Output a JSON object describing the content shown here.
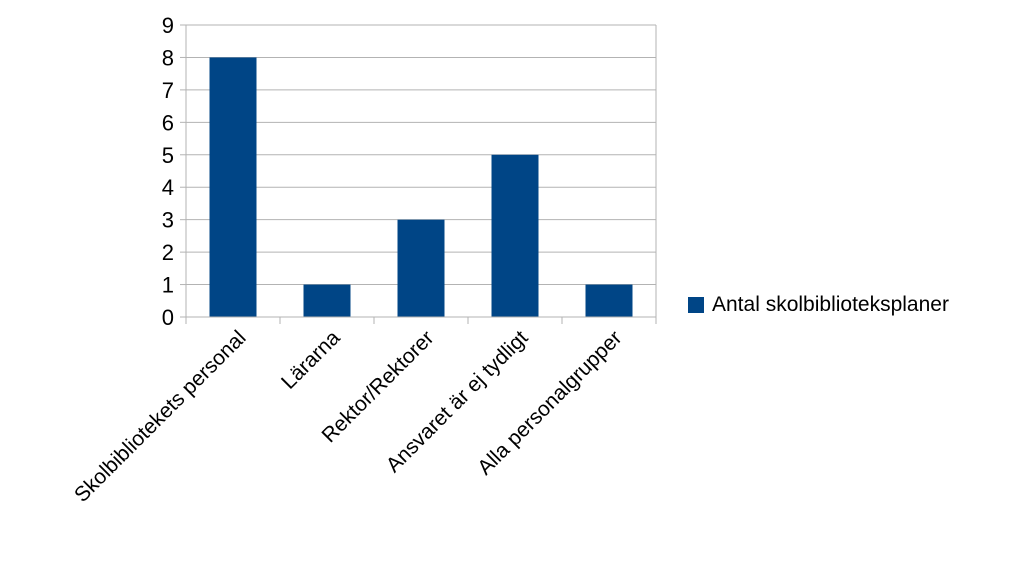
{
  "chart_data": {
    "type": "bar",
    "categories": [
      "Skolbibliotekets personal",
      "Lärarna",
      "Rektor/Rektorer",
      "Ansvaret är ej tydligt",
      "Alla personalgrupper"
    ],
    "series": [
      {
        "name": "Antal skolbiblioteksplaner",
        "values": [
          8,
          1,
          3,
          5,
          1
        ],
        "color": "#004586"
      }
    ],
    "yticks": [
      "0",
      "1",
      "2",
      "3",
      "4",
      "5",
      "6",
      "7",
      "8",
      "9"
    ],
    "ylim": [
      0,
      9
    ],
    "grid": true,
    "legend_position": "right",
    "title": "",
    "xlabel": "",
    "ylabel": ""
  }
}
